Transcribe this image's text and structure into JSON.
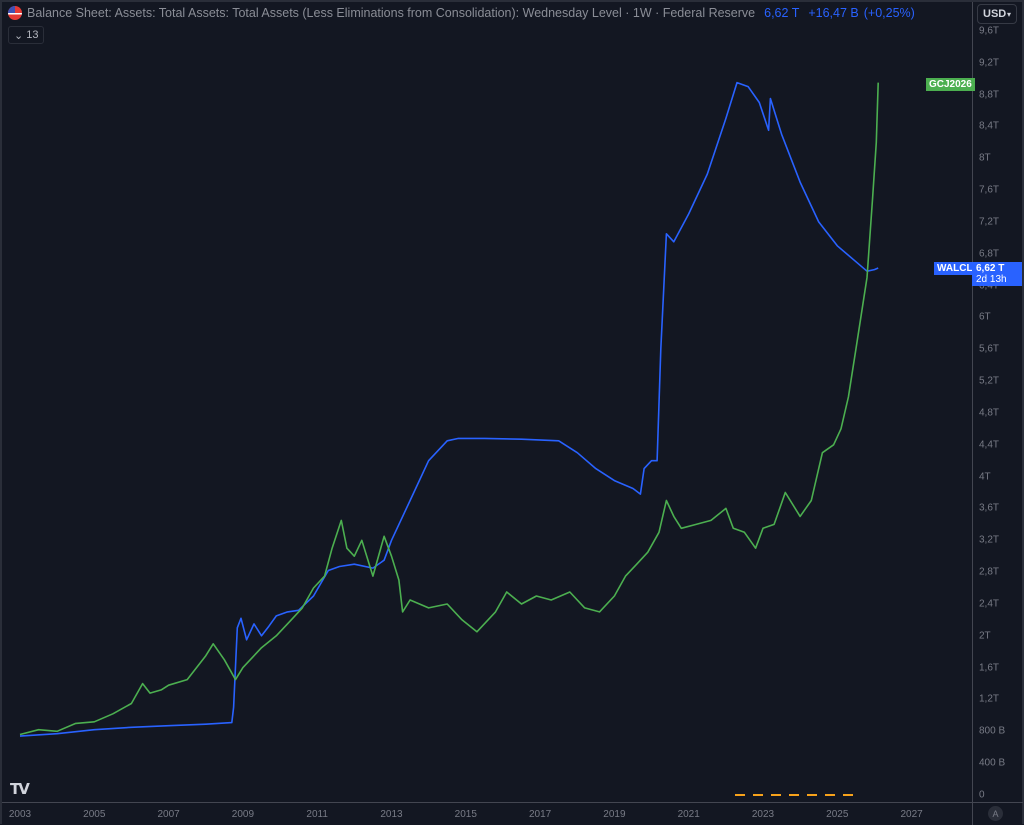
{
  "legend": {
    "flag_icon": "us-flag-icon",
    "title": "Balance Sheet: Assets: Total Assets: Total Assets (Less Eliminations from Consolidation): Wednesday Level · 1W · Federal Reserve",
    "value": "6,62 T",
    "change": "+16,47 B",
    "change_pct": "(+0,25%)",
    "collapse_label": "13"
  },
  "price_axis": {
    "currency": "USD",
    "auto_label": "A"
  },
  "series_tags": [
    {
      "label": "GCJ2026",
      "color": "#4caf50"
    },
    {
      "label": "WALCL",
      "value": "6,62 T",
      "countdown": "2d 13h",
      "color": "#2962ff"
    }
  ],
  "colors": {
    "background": "#131722",
    "walcl": "#2962ff",
    "gold": "#4caf50",
    "marker": "#f7a21b"
  },
  "chart_data": {
    "type": "line",
    "title": "Balance Sheet: Assets: Total Assets: Total Assets (Less Eliminations from Consolidation): Wednesday Level · 1W · Federal Reserve",
    "xlabel": "",
    "ylabel": "USD",
    "y_ticks": [
      "9,6 T",
      "9,2 T",
      "8,8 T",
      "8,4 T",
      "8 T",
      "7,6 T",
      "7,2 T",
      "6,8 T",
      "6,4 T",
      "6 T",
      "5,6 T",
      "5,2 T",
      "4,8 T",
      "4,4 T",
      "4 T",
      "3,6 T",
      "3,2 T",
      "2,8 T",
      "2,4 T",
      "2 T",
      "1,6 T",
      "1,2 T",
      "800 B",
      "400 B",
      "0"
    ],
    "x_ticks": [
      "2003",
      "2005",
      "2007",
      "2009",
      "2011",
      "2013",
      "2015",
      "2017",
      "2019",
      "2021",
      "2023",
      "2025",
      "2027"
    ],
    "ylim": [
      0,
      9.7
    ],
    "xlim": [
      2003,
      2028.6
    ],
    "grid": false,
    "legend_position": "top-left",
    "series": [
      {
        "name": "WALCL",
        "unit": "T USD",
        "x": [
          2003.0,
          2004.0,
          2005.0,
          2006.0,
          2007.0,
          2008.0,
          2008.7,
          2008.75,
          2008.85,
          2008.95,
          2009.1,
          2009.3,
          2009.5,
          2009.7,
          2009.9,
          2010.2,
          2010.5,
          2010.9,
          2011.3,
          2011.6,
          2012.0,
          2012.5,
          2012.8,
          2013.0,
          2013.5,
          2014.0,
          2014.5,
          2014.8,
          2015.5,
          2016.5,
          2017.5,
          2018.0,
          2018.5,
          2019.0,
          2019.5,
          2019.7,
          2019.8,
          2020.0,
          2020.15,
          2020.25,
          2020.4,
          2020.6,
          2021.0,
          2021.5,
          2022.0,
          2022.3,
          2022.6,
          2022.9,
          2023.15,
          2023.2,
          2023.5,
          2024.0,
          2024.5,
          2025.0,
          2025.5,
          2025.8,
          2026.0,
          2026.1
        ],
        "values": [
          0.74,
          0.77,
          0.82,
          0.85,
          0.87,
          0.89,
          0.91,
          1.1,
          2.1,
          2.22,
          1.95,
          2.15,
          2.0,
          2.12,
          2.25,
          2.3,
          2.32,
          2.5,
          2.82,
          2.87,
          2.9,
          2.85,
          2.95,
          3.2,
          3.7,
          4.2,
          4.45,
          4.48,
          4.48,
          4.47,
          4.45,
          4.3,
          4.1,
          3.95,
          3.85,
          3.78,
          4.1,
          4.2,
          4.2,
          5.6,
          7.05,
          6.95,
          7.3,
          7.8,
          8.5,
          8.95,
          8.9,
          8.7,
          8.35,
          8.75,
          8.3,
          7.7,
          7.2,
          6.9,
          6.7,
          6.58,
          6.6,
          6.62
        ]
      },
      {
        "name": "GCJ2026",
        "unit": "scaled",
        "x": [
          2003.0,
          2003.5,
          2004.0,
          2004.5,
          2005.0,
          2005.5,
          2006.0,
          2006.3,
          2006.5,
          2006.8,
          2007.0,
          2007.5,
          2008.0,
          2008.2,
          2008.5,
          2008.8,
          2009.0,
          2009.5,
          2009.9,
          2010.3,
          2010.6,
          2010.9,
          2011.2,
          2011.4,
          2011.65,
          2011.8,
          2012.0,
          2012.2,
          2012.5,
          2012.8,
          2013.0,
          2013.2,
          2013.3,
          2013.5,
          2014.0,
          2014.5,
          2014.9,
          2015.3,
          2015.8,
          2016.1,
          2016.5,
          2016.9,
          2017.3,
          2017.8,
          2018.2,
          2018.6,
          2019.0,
          2019.3,
          2019.6,
          2019.9,
          2020.2,
          2020.4,
          2020.6,
          2020.8,
          2021.2,
          2021.6,
          2022.0,
          2022.2,
          2022.5,
          2022.8,
          2023.0,
          2023.3,
          2023.6,
          2024.0,
          2024.3,
          2024.6,
          2024.9,
          2025.1,
          2025.3,
          2025.5,
          2025.7,
          2025.8,
          2025.95,
          2026.05,
          2026.1
        ],
        "values": [
          0.76,
          0.82,
          0.8,
          0.9,
          0.92,
          1.02,
          1.15,
          1.4,
          1.28,
          1.32,
          1.38,
          1.45,
          1.75,
          1.9,
          1.7,
          1.45,
          1.6,
          1.85,
          2.0,
          2.2,
          2.35,
          2.6,
          2.75,
          3.1,
          3.45,
          3.1,
          3.0,
          3.2,
          2.75,
          3.25,
          3.0,
          2.7,
          2.3,
          2.45,
          2.35,
          2.4,
          2.2,
          2.05,
          2.3,
          2.55,
          2.4,
          2.5,
          2.45,
          2.55,
          2.35,
          2.3,
          2.5,
          2.75,
          2.9,
          3.05,
          3.3,
          3.7,
          3.5,
          3.35,
          3.4,
          3.45,
          3.6,
          3.35,
          3.3,
          3.1,
          3.35,
          3.4,
          3.8,
          3.5,
          3.7,
          4.3,
          4.4,
          4.6,
          5.0,
          5.6,
          6.2,
          6.5,
          7.5,
          8.2,
          8.95
        ]
      }
    ]
  }
}
